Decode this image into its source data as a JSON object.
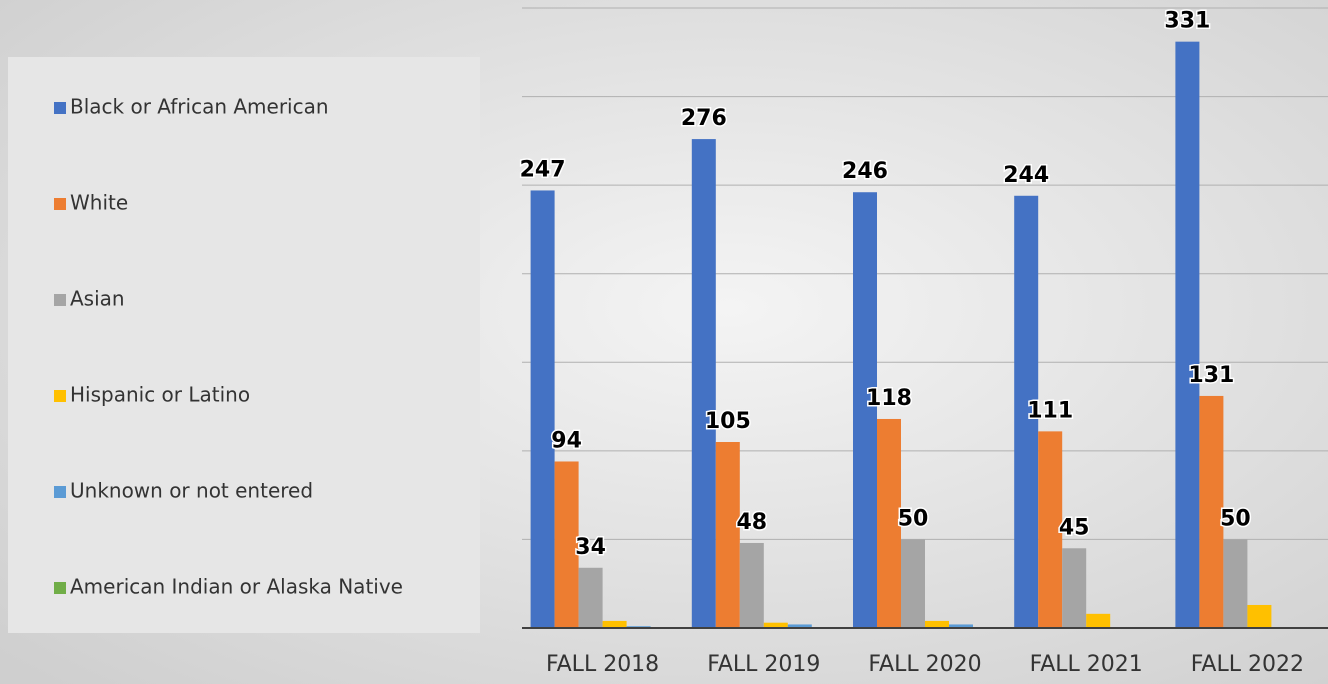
{
  "chart_data": {
    "type": "bar",
    "categories": [
      "FALL 2018",
      "FALL 2019",
      "FALL 2020",
      "FALL 2021",
      "FALL 2022"
    ],
    "series": [
      {
        "name": "Black or African American",
        "color": "#4472c4",
        "values": [
          247,
          276,
          246,
          244,
          331
        ],
        "labels": true
      },
      {
        "name": "White",
        "color": "#ed7d31",
        "values": [
          94,
          105,
          118,
          111,
          131
        ],
        "labels": true
      },
      {
        "name": "Asian",
        "color": "#a5a5a5",
        "values": [
          34,
          48,
          50,
          45,
          50
        ],
        "labels": true
      },
      {
        "name": "Hispanic or Latino",
        "color": "#ffc000",
        "values": [
          4,
          3,
          4,
          8,
          13
        ],
        "labels": false
      },
      {
        "name": "Unknown or not entered",
        "color": "#5b9bd5",
        "values": [
          1,
          2,
          2,
          0,
          0
        ],
        "labels": false
      },
      {
        "name": "American Indian or Alaska Native",
        "color": "#70ad47",
        "values": [
          0,
          0,
          0,
          0,
          0
        ],
        "labels": false
      }
    ],
    "ylim": [
      0,
      350
    ],
    "yticks": [
      0,
      50,
      100,
      150,
      200,
      250,
      300,
      350
    ],
    "grid": true,
    "legend": "left"
  }
}
